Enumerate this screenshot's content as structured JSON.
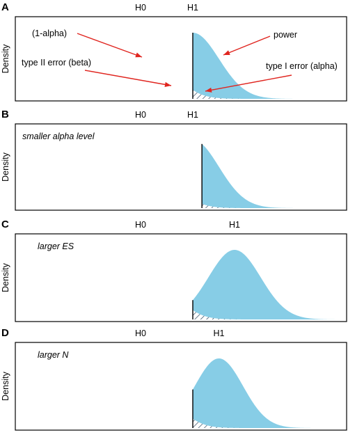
{
  "colors": {
    "power_fill": "#87cde6",
    "curve": "#000000",
    "arrow": "#e0251f",
    "hatch": "#1b3550"
  },
  "y_axis_label": "Density",
  "null_label": "H0",
  "alt_label": "H1",
  "annotations": {
    "one_minus_alpha": "(1-alpha)",
    "power": "power",
    "type2": "type II error (beta)",
    "type1": "type I error (alpha)"
  },
  "panels": [
    {
      "letter": "A",
      "condition": "",
      "h0_mean": 0,
      "h1_mean": 2.0,
      "h1_sd": 1.0,
      "critical_value": 2.0
    },
    {
      "letter": "B",
      "condition": "smaller alpha level",
      "h0_mean": 0,
      "h1_mean": 2.0,
      "h1_sd": 1.0,
      "critical_value": 2.35
    },
    {
      "letter": "C",
      "condition": "larger ES",
      "h0_mean": 0,
      "h1_mean": 3.6,
      "h1_sd": 1.0,
      "critical_value": 2.0
    },
    {
      "letter": "D",
      "condition": "larger N",
      "h0_mean": 0,
      "h1_mean": 3.0,
      "h1_sd": 0.92,
      "critical_value": 2.0
    }
  ]
}
